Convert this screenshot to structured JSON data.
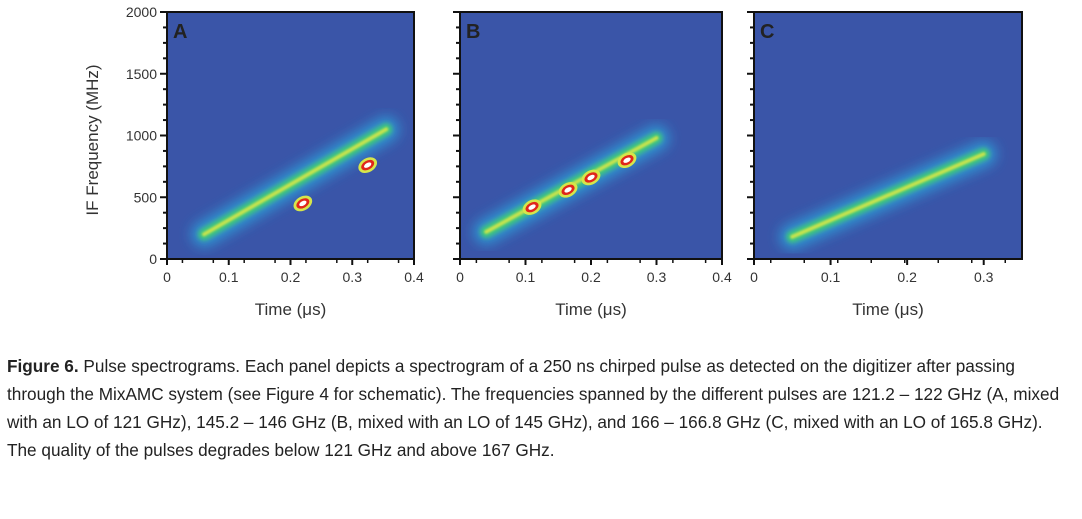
{
  "figure": {
    "ylabel": "IF Frequency (MHz)",
    "caption_label": "Figure 6.",
    "caption_text": "Pulse spectrograms.  Each panel depicts a spectrogram of a 250 ns chirped pulse as detected on the digitizer after passing through the MixAMC system (see Figure 4 for schematic).  The frequencies spanned by the different pulses are 121.2 – 122 GHz (A, mixed with an LO of 121 GHz), 145.2 – 146 GHz (B, mixed with an LO of 145 GHz), and 166 – 166.8 GHz (C, mixed with an LO of 165.8 GHz).  The quality of the pulses degrades below 121 GHz and above 167 GHz."
  },
  "colors": {
    "background": "#3a55a8",
    "low": "#2f9bd8",
    "mid": "#3fc87a",
    "high": "#d6e64a",
    "peak_ring": "#e0261b",
    "peak_core": "#ffffff"
  },
  "chart_data": [
    {
      "type": "heatmap",
      "panel": "A",
      "xlabel": "Time (μs)",
      "ylabel": "IF Frequency (MHz)",
      "xlim": [
        0,
        0.4
      ],
      "ylim": [
        0,
        2000
      ],
      "xticks": [
        "0",
        "0.1",
        "0.2",
        "0.3",
        "0.4"
      ],
      "yticks": [
        "0",
        "500",
        "1000",
        "1500",
        "2000"
      ],
      "chirp": {
        "t_start": 0.06,
        "f_start": 200,
        "t_end": 0.355,
        "f_end": 1050
      },
      "peaks": [
        {
          "t": 0.22,
          "f": 450
        },
        {
          "t": 0.325,
          "f": 760
        }
      ]
    },
    {
      "type": "heatmap",
      "panel": "B",
      "xlabel": "Time (μs)",
      "xlim": [
        0,
        0.4
      ],
      "ylim": [
        0,
        2000
      ],
      "xticks": [
        "0",
        "0.1",
        "0.2",
        "0.3",
        "0.4"
      ],
      "chirp": {
        "t_start": 0.04,
        "f_start": 220,
        "t_end": 0.3,
        "f_end": 980
      },
      "peaks": [
        {
          "t": 0.11,
          "f": 420
        },
        {
          "t": 0.165,
          "f": 560
        },
        {
          "t": 0.2,
          "f": 660
        },
        {
          "t": 0.255,
          "f": 800
        }
      ]
    },
    {
      "type": "heatmap",
      "panel": "C",
      "xlabel": "Time (μs)",
      "xlim": [
        0,
        0.35
      ],
      "ylim": [
        0,
        2000
      ],
      "xticks": [
        "0",
        "0.1",
        "0.2",
        "0.3"
      ],
      "chirp": {
        "t_start": 0.05,
        "f_start": 180,
        "t_end": 0.3,
        "f_end": 850
      },
      "peaks": []
    }
  ]
}
